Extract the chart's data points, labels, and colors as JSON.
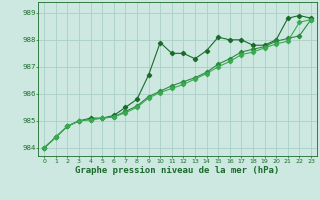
{
  "title": "Graphe pression niveau de la mer (hPa)",
  "bg_color": "#cce8e0",
  "grid_color": "#aacfc8",
  "line_color": "#1a6b2a",
  "line_color2": "#2d8a3e",
  "line_color3": "#3aaa50",
  "xlim": [
    -0.5,
    23.5
  ],
  "ylim": [
    983.7,
    989.4
  ],
  "yticks": [
    984,
    985,
    986,
    987,
    988,
    989
  ],
  "xticks": [
    0,
    1,
    2,
    3,
    4,
    5,
    6,
    7,
    8,
    9,
    10,
    11,
    12,
    13,
    14,
    15,
    16,
    17,
    18,
    19,
    20,
    21,
    22,
    23
  ],
  "series1": [
    984.0,
    984.4,
    984.8,
    985.0,
    985.1,
    985.1,
    985.2,
    985.5,
    985.8,
    986.7,
    987.9,
    987.5,
    987.5,
    987.3,
    987.6,
    988.1,
    988.0,
    988.0,
    987.8,
    987.8,
    988.0,
    988.8,
    988.9,
    988.8
  ],
  "series2": [
    984.0,
    984.4,
    984.8,
    985.0,
    985.05,
    985.1,
    985.15,
    985.35,
    985.55,
    985.9,
    986.1,
    986.3,
    986.45,
    986.6,
    986.8,
    987.1,
    987.3,
    987.55,
    987.65,
    987.75,
    987.95,
    988.05,
    988.15,
    988.75
  ],
  "series3": [
    984.0,
    984.4,
    984.8,
    985.0,
    985.05,
    985.1,
    985.15,
    985.3,
    985.5,
    985.85,
    986.05,
    986.2,
    986.35,
    986.55,
    986.75,
    987.0,
    987.2,
    987.45,
    987.55,
    987.7,
    987.85,
    987.95,
    988.65,
    988.75
  ],
  "title_fontsize": 6.5
}
